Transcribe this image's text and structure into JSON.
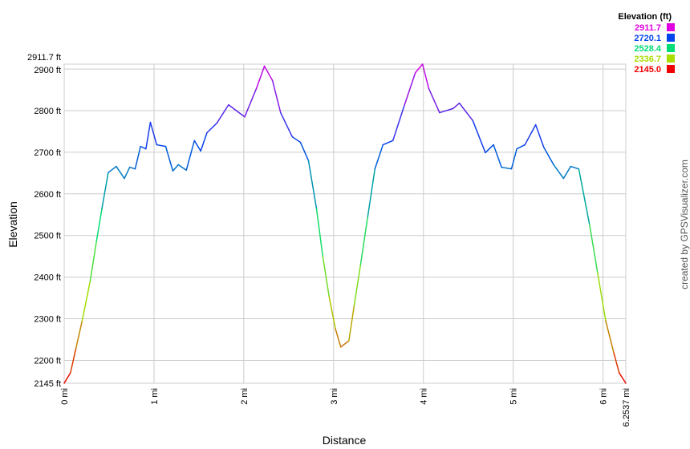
{
  "chart_data": {
    "type": "line",
    "xlabel": "Distance",
    "ylabel": "Elevation",
    "xlim": [
      0,
      6.2537
    ],
    "ylim": [
      2145,
      2911.7
    ],
    "grid": true,
    "x_ticks": [
      {
        "value": 0,
        "label": "0 mi"
      },
      {
        "value": 1,
        "label": "1 mi"
      },
      {
        "value": 2,
        "label": "2 mi"
      },
      {
        "value": 3,
        "label": "3 mi"
      },
      {
        "value": 4,
        "label": "4 mi"
      },
      {
        "value": 5,
        "label": "5 mi"
      },
      {
        "value": 6,
        "label": "6 mi"
      },
      {
        "value": 6.2537,
        "label": "6.2537 mi"
      }
    ],
    "y_ticks": [
      {
        "value": 2145,
        "label": "2145 ft"
      },
      {
        "value": 2200,
        "label": "2200 ft"
      },
      {
        "value": 2300,
        "label": "2300 ft"
      },
      {
        "value": 2400,
        "label": "2400 ft"
      },
      {
        "value": 2500,
        "label": "2500 ft"
      },
      {
        "value": 2600,
        "label": "2600 ft"
      },
      {
        "value": 2700,
        "label": "2700 ft"
      },
      {
        "value": 2800,
        "label": "2800 ft"
      },
      {
        "value": 2900,
        "label": "2900 ft"
      },
      {
        "value": 2911.7,
        "label": "2911.7 ft"
      }
    ],
    "legend": {
      "title": "Elevation (ft)",
      "placement": "top-right",
      "entries": [
        {
          "label": "2911.7",
          "color": "#e000e0"
        },
        {
          "label": "2720.1",
          "color": "#0044ee"
        },
        {
          "label": "2528.4",
          "color": "#00dd77"
        },
        {
          "label": "2336.7",
          "color": "#aadd00"
        },
        {
          "label": "2145.0",
          "color": "#ee0000"
        }
      ]
    },
    "series": [
      {
        "x": [
          0,
          0.07,
          0.13,
          0.2,
          0.29,
          0.36,
          0.42,
          0.49,
          0.58,
          0.67,
          0.73,
          0.79,
          0.85,
          0.91,
          0.96,
          1.03,
          1.13,
          1.21,
          1.27,
          1.36,
          1.45,
          1.52,
          1.59,
          1.7,
          1.83,
          2.01,
          2.14,
          2.23,
          2.32,
          2.41,
          2.54,
          2.63,
          2.72,
          2.81,
          2.88,
          2.95,
          3.02,
          3.08,
          3.17,
          3.23,
          3.3,
          3.38,
          3.46,
          3.55,
          3.66,
          3.79,
          3.91,
          3.99,
          4.06,
          4.18,
          4.33,
          4.4,
          4.55,
          4.69,
          4.78,
          4.87,
          4.98,
          5.04,
          5.13,
          5.25,
          5.34,
          5.45,
          5.56,
          5.64,
          5.73,
          5.85,
          5.94,
          6.03,
          6.12,
          6.18,
          6.2537
        ],
        "y": [
          2145,
          2170,
          2228,
          2295,
          2391,
          2487,
          2564,
          2651,
          2666,
          2637,
          2664,
          2660,
          2714,
          2708,
          2772,
          2718,
          2714,
          2655,
          2670,
          2657,
          2728,
          2703,
          2747,
          2770,
          2814,
          2785,
          2853,
          2907,
          2872,
          2795,
          2737,
          2724,
          2680,
          2564,
          2449,
          2353,
          2276,
          2232,
          2247,
          2333,
          2430,
          2545,
          2660,
          2718,
          2728,
          2814,
          2891,
          2911.7,
          2853,
          2795,
          2805,
          2818,
          2776,
          2699,
          2718,
          2664,
          2660,
          2708,
          2718,
          2766,
          2712,
          2670,
          2637,
          2666,
          2660,
          2526,
          2410,
          2295,
          2218,
          2170,
          2145
        ]
      }
    ]
  },
  "credit": "created by GPSVisualizer.com"
}
